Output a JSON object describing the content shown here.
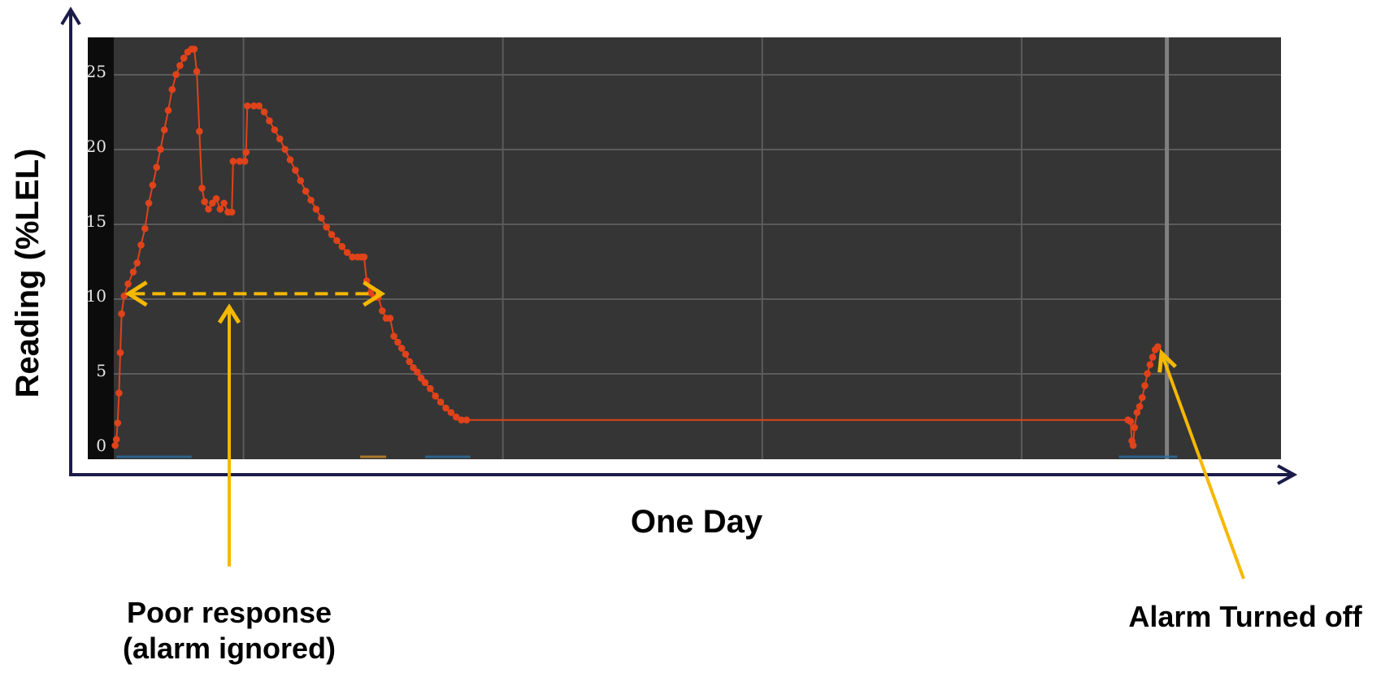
{
  "chart_data": {
    "type": "line",
    "xlabel": "One Day",
    "ylabel": "Reading (%LEL)",
    "ylim": [
      0,
      26.5
    ],
    "yticks": [
      "0",
      "5",
      "10",
      "15",
      "20",
      "25"
    ],
    "grid": true,
    "colors": {
      "plot_background": "#353535",
      "tick_strip": "#0c0c0c",
      "gridline": "#5b5b5b",
      "series": "#e0421a",
      "annotation": "#f5b800",
      "axis": "#1c1c4a"
    },
    "x_unit": "fraction of one day",
    "series": [
      {
        "points": [
          [
            0.001,
            0
          ],
          [
            0.002,
            0.4
          ],
          [
            0.003,
            1.5
          ],
          [
            0.004,
            3.5
          ],
          [
            0.005,
            6.2
          ],
          [
            0.006,
            8.8
          ],
          [
            0.008,
            10
          ],
          [
            0.011,
            10.8
          ],
          [
            0.015,
            11.6
          ],
          [
            0.018,
            12.2
          ],
          [
            0.021,
            13.4
          ],
          [
            0.024,
            14.5
          ],
          [
            0.027,
            16.2
          ],
          [
            0.03,
            17.4
          ],
          [
            0.033,
            18.6
          ],
          [
            0.036,
            19.8
          ],
          [
            0.039,
            21.1
          ],
          [
            0.042,
            22.4
          ],
          [
            0.045,
            23.8
          ],
          [
            0.048,
            24.8
          ],
          [
            0.051,
            25.4
          ],
          [
            0.054,
            25.9
          ],
          [
            0.057,
            26.3
          ],
          [
            0.06,
            26.5
          ],
          [
            0.062,
            26.5
          ],
          [
            0.064,
            25
          ],
          [
            0.066,
            21
          ],
          [
            0.068,
            17.2
          ],
          [
            0.07,
            16.3
          ],
          [
            0.073,
            15.8
          ],
          [
            0.076,
            16.2
          ],
          [
            0.079,
            16.5
          ],
          [
            0.082,
            15.8
          ],
          [
            0.085,
            16.2
          ],
          [
            0.088,
            15.6
          ],
          [
            0.091,
            15.6
          ],
          [
            0.092,
            19
          ],
          [
            0.097,
            19
          ],
          [
            0.101,
            19
          ],
          [
            0.102,
            19.6
          ],
          [
            0.103,
            22.7
          ],
          [
            0.108,
            22.7
          ],
          [
            0.112,
            22.7
          ],
          [
            0.116,
            22.3
          ],
          [
            0.12,
            21.7
          ],
          [
            0.124,
            21.1
          ],
          [
            0.128,
            20.5
          ],
          [
            0.132,
            19.8
          ],
          [
            0.136,
            19.1
          ],
          [
            0.14,
            18.4
          ],
          [
            0.144,
            17.7
          ],
          [
            0.148,
            17
          ],
          [
            0.152,
            16.4
          ],
          [
            0.156,
            15.8
          ],
          [
            0.16,
            15.2
          ],
          [
            0.164,
            14.6
          ],
          [
            0.168,
            14.1
          ],
          [
            0.172,
            13.7
          ],
          [
            0.176,
            13.3
          ],
          [
            0.18,
            12.9
          ],
          [
            0.184,
            12.6
          ],
          [
            0.188,
            12.6
          ],
          [
            0.191,
            12.6
          ],
          [
            0.193,
            12.6
          ],
          [
            0.195,
            11
          ],
          [
            0.198,
            10.2
          ],
          [
            0.201,
            9.9
          ],
          [
            0.204,
            9.9
          ],
          [
            0.207,
            9
          ],
          [
            0.21,
            8.5
          ],
          [
            0.213,
            8.5
          ],
          [
            0.216,
            7.3
          ],
          [
            0.219,
            6.9
          ],
          [
            0.222,
            6.5
          ],
          [
            0.225,
            6.1
          ],
          [
            0.228,
            5.6
          ],
          [
            0.231,
            5.2
          ],
          [
            0.234,
            4.9
          ],
          [
            0.237,
            4.5
          ],
          [
            0.24,
            4.2
          ],
          [
            0.244,
            3.8
          ],
          [
            0.248,
            3.3
          ],
          [
            0.252,
            2.9
          ],
          [
            0.256,
            2.5
          ],
          [
            0.26,
            2.2
          ],
          [
            0.264,
            1.9
          ],
          [
            0.268,
            1.7
          ],
          [
            0.272,
            1.7
          ],
          [
            0.4,
            1.7
          ],
          [
            0.6,
            1.7
          ],
          [
            0.782,
            1.7
          ],
          [
            0.784,
            1.6
          ],
          [
            0.785,
            0.3
          ],
          [
            0.786,
            0
          ],
          [
            0.787,
            1.2
          ],
          [
            0.789,
            2.2
          ],
          [
            0.791,
            2.6
          ],
          [
            0.793,
            3.2
          ],
          [
            0.795,
            4
          ],
          [
            0.797,
            4.8
          ],
          [
            0.799,
            5.4
          ],
          [
            0.801,
            5.9
          ],
          [
            0.803,
            6.4
          ],
          [
            0.805,
            6.6
          ]
        ]
      }
    ],
    "alarm_marker_x": 0.812,
    "annotations": [
      {
        "text_lines": [
          "Poor response",
          "(alarm ignored)"
        ],
        "span_y": 10.2,
        "span_x": [
          0.009,
          0.209
        ]
      },
      {
        "text_lines": [
          "Alarm Turned off"
        ],
        "target": [
          0.806,
          6.5
        ]
      }
    ]
  }
}
